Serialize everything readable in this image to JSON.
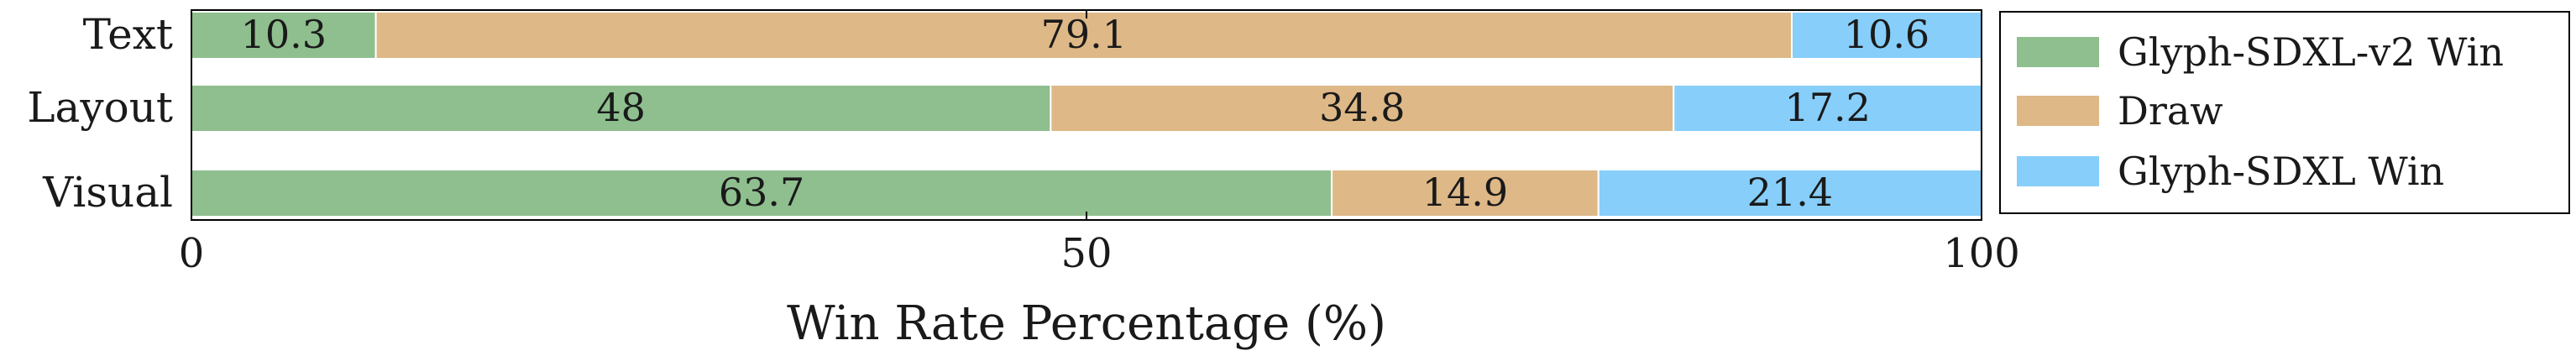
{
  "chart_data": {
    "type": "bar",
    "orientation": "horizontal",
    "stacked": true,
    "categories": [
      "Text",
      "Layout",
      "Visual"
    ],
    "series": [
      {
        "name": "Glyph-SDXL-v2 Win",
        "values": [
          10.3,
          48,
          63.7
        ],
        "labels": [
          "10.3",
          "48",
          "63.7"
        ],
        "color": "#8fbf8f"
      },
      {
        "name": "Draw",
        "values": [
          79.1,
          34.8,
          14.9
        ],
        "labels": [
          "79.1",
          "34.8",
          "14.9"
        ],
        "color": "#deb887"
      },
      {
        "name": "Glyph-SDXL Win",
        "values": [
          10.6,
          17.2,
          21.4
        ],
        "labels": [
          "10.6",
          "17.2",
          "21.4"
        ],
        "color": "#87cefa"
      }
    ],
    "title": "",
    "xlabel": "Win Rate Percentage (%)",
    "ylabel": "",
    "xlim": [
      0,
      100
    ],
    "xticks": [
      0,
      50,
      100
    ],
    "xtick_labels": [
      "0",
      "50",
      "100"
    ],
    "grid": false,
    "legend_position": "right"
  }
}
